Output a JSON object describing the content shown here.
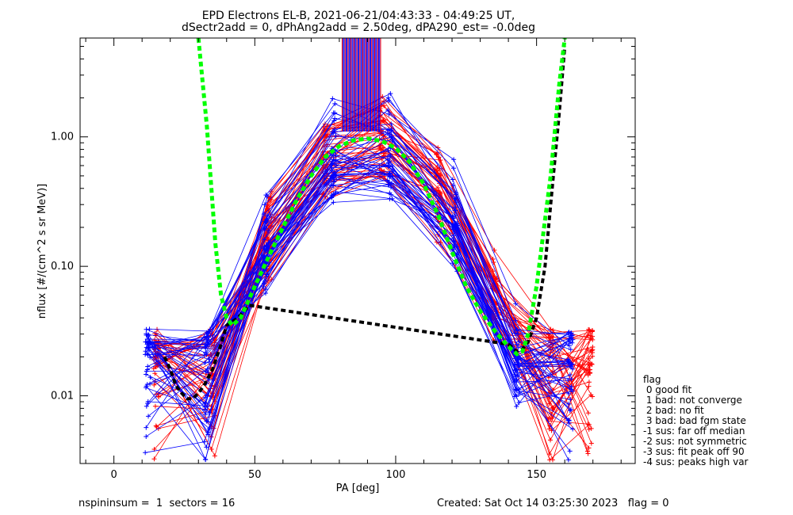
{
  "chart_data": {
    "type": "line",
    "title_line1": "EPD Electrons EL-B, 2021-06-21/04:43:33 - 04:49:25 UT,",
    "title_line2": "dSectr2add = 0, dPhAng2add = 2.50deg, dPA290_est=  -0.0deg",
    "xlabel": "PA [deg]",
    "ylabel": "nflux [#/(cm^2 s sr MeV)]",
    "xlim": [
      -12,
      185
    ],
    "ylim": [
      0.003,
      5.8
    ],
    "y_scale": "log",
    "x_ticks": [
      {
        "value": 0,
        "label": "0"
      },
      {
        "value": 50,
        "label": "50"
      },
      {
        "value": 100,
        "label": "100"
      },
      {
        "value": 150,
        "label": "150"
      }
    ],
    "y_ticks": [
      {
        "value": 0.01,
        "label": "0.01"
      },
      {
        "value": 0.1,
        "label": "0.10"
      },
      {
        "value": 1.0,
        "label": "1.00"
      }
    ],
    "fit_curve_green": {
      "color": "#00ff00",
      "x": [
        30,
        33,
        36,
        38,
        40,
        42,
        45,
        50,
        55,
        60,
        65,
        70,
        75,
        80,
        85,
        90,
        95,
        100,
        105,
        110,
        115,
        120,
        125,
        130,
        135,
        140,
        143,
        145,
        147,
        150,
        155,
        158,
        160
      ],
      "y": [
        5.8,
        1.2,
        0.15,
        0.06,
        0.04,
        0.035,
        0.04,
        0.07,
        0.12,
        0.2,
        0.33,
        0.5,
        0.7,
        0.85,
        0.94,
        0.97,
        0.93,
        0.82,
        0.64,
        0.43,
        0.25,
        0.13,
        0.07,
        0.045,
        0.032,
        0.024,
        0.021,
        0.022,
        0.03,
        0.07,
        0.5,
        2.5,
        5.8
      ]
    },
    "fit_curve_black": {
      "color": "#000000",
      "x": [
        18,
        20,
        22,
        24,
        26,
        28,
        30,
        32,
        35,
        38,
        40,
        44,
        48,
        140,
        143,
        145,
        147,
        150,
        153,
        155,
        158,
        160
      ],
      "y": [
        0.02,
        0.016,
        0.012,
        0.0105,
        0.0095,
        0.0095,
        0.0105,
        0.012,
        0.016,
        0.025,
        0.035,
        0.04,
        0.05,
        0.025,
        0.022,
        0.023,
        0.026,
        0.04,
        0.1,
        0.3,
        1.5,
        5.0
      ]
    },
    "series": [
      {
        "name": "red",
        "color": "#ff0000"
      },
      {
        "name": "blue",
        "color": "#0000ff"
      }
    ],
    "legend": {
      "title": "flag",
      "placement": "right",
      "items": [
        " 0 good fit",
        " 1 bad: not converge",
        " 2 bad: no fit",
        " 3 bad: bad fgm state",
        "-1 sus: far off median",
        "-2 sus: not symmetric",
        "-3 sus: fit peak off 90",
        "-4 sus: peaks high var"
      ]
    },
    "footer_left": "nspininsum =  1  sectors = 16",
    "footer_right": "Created: Sat Oct 14 03:25:30 2023   flag = 0"
  }
}
